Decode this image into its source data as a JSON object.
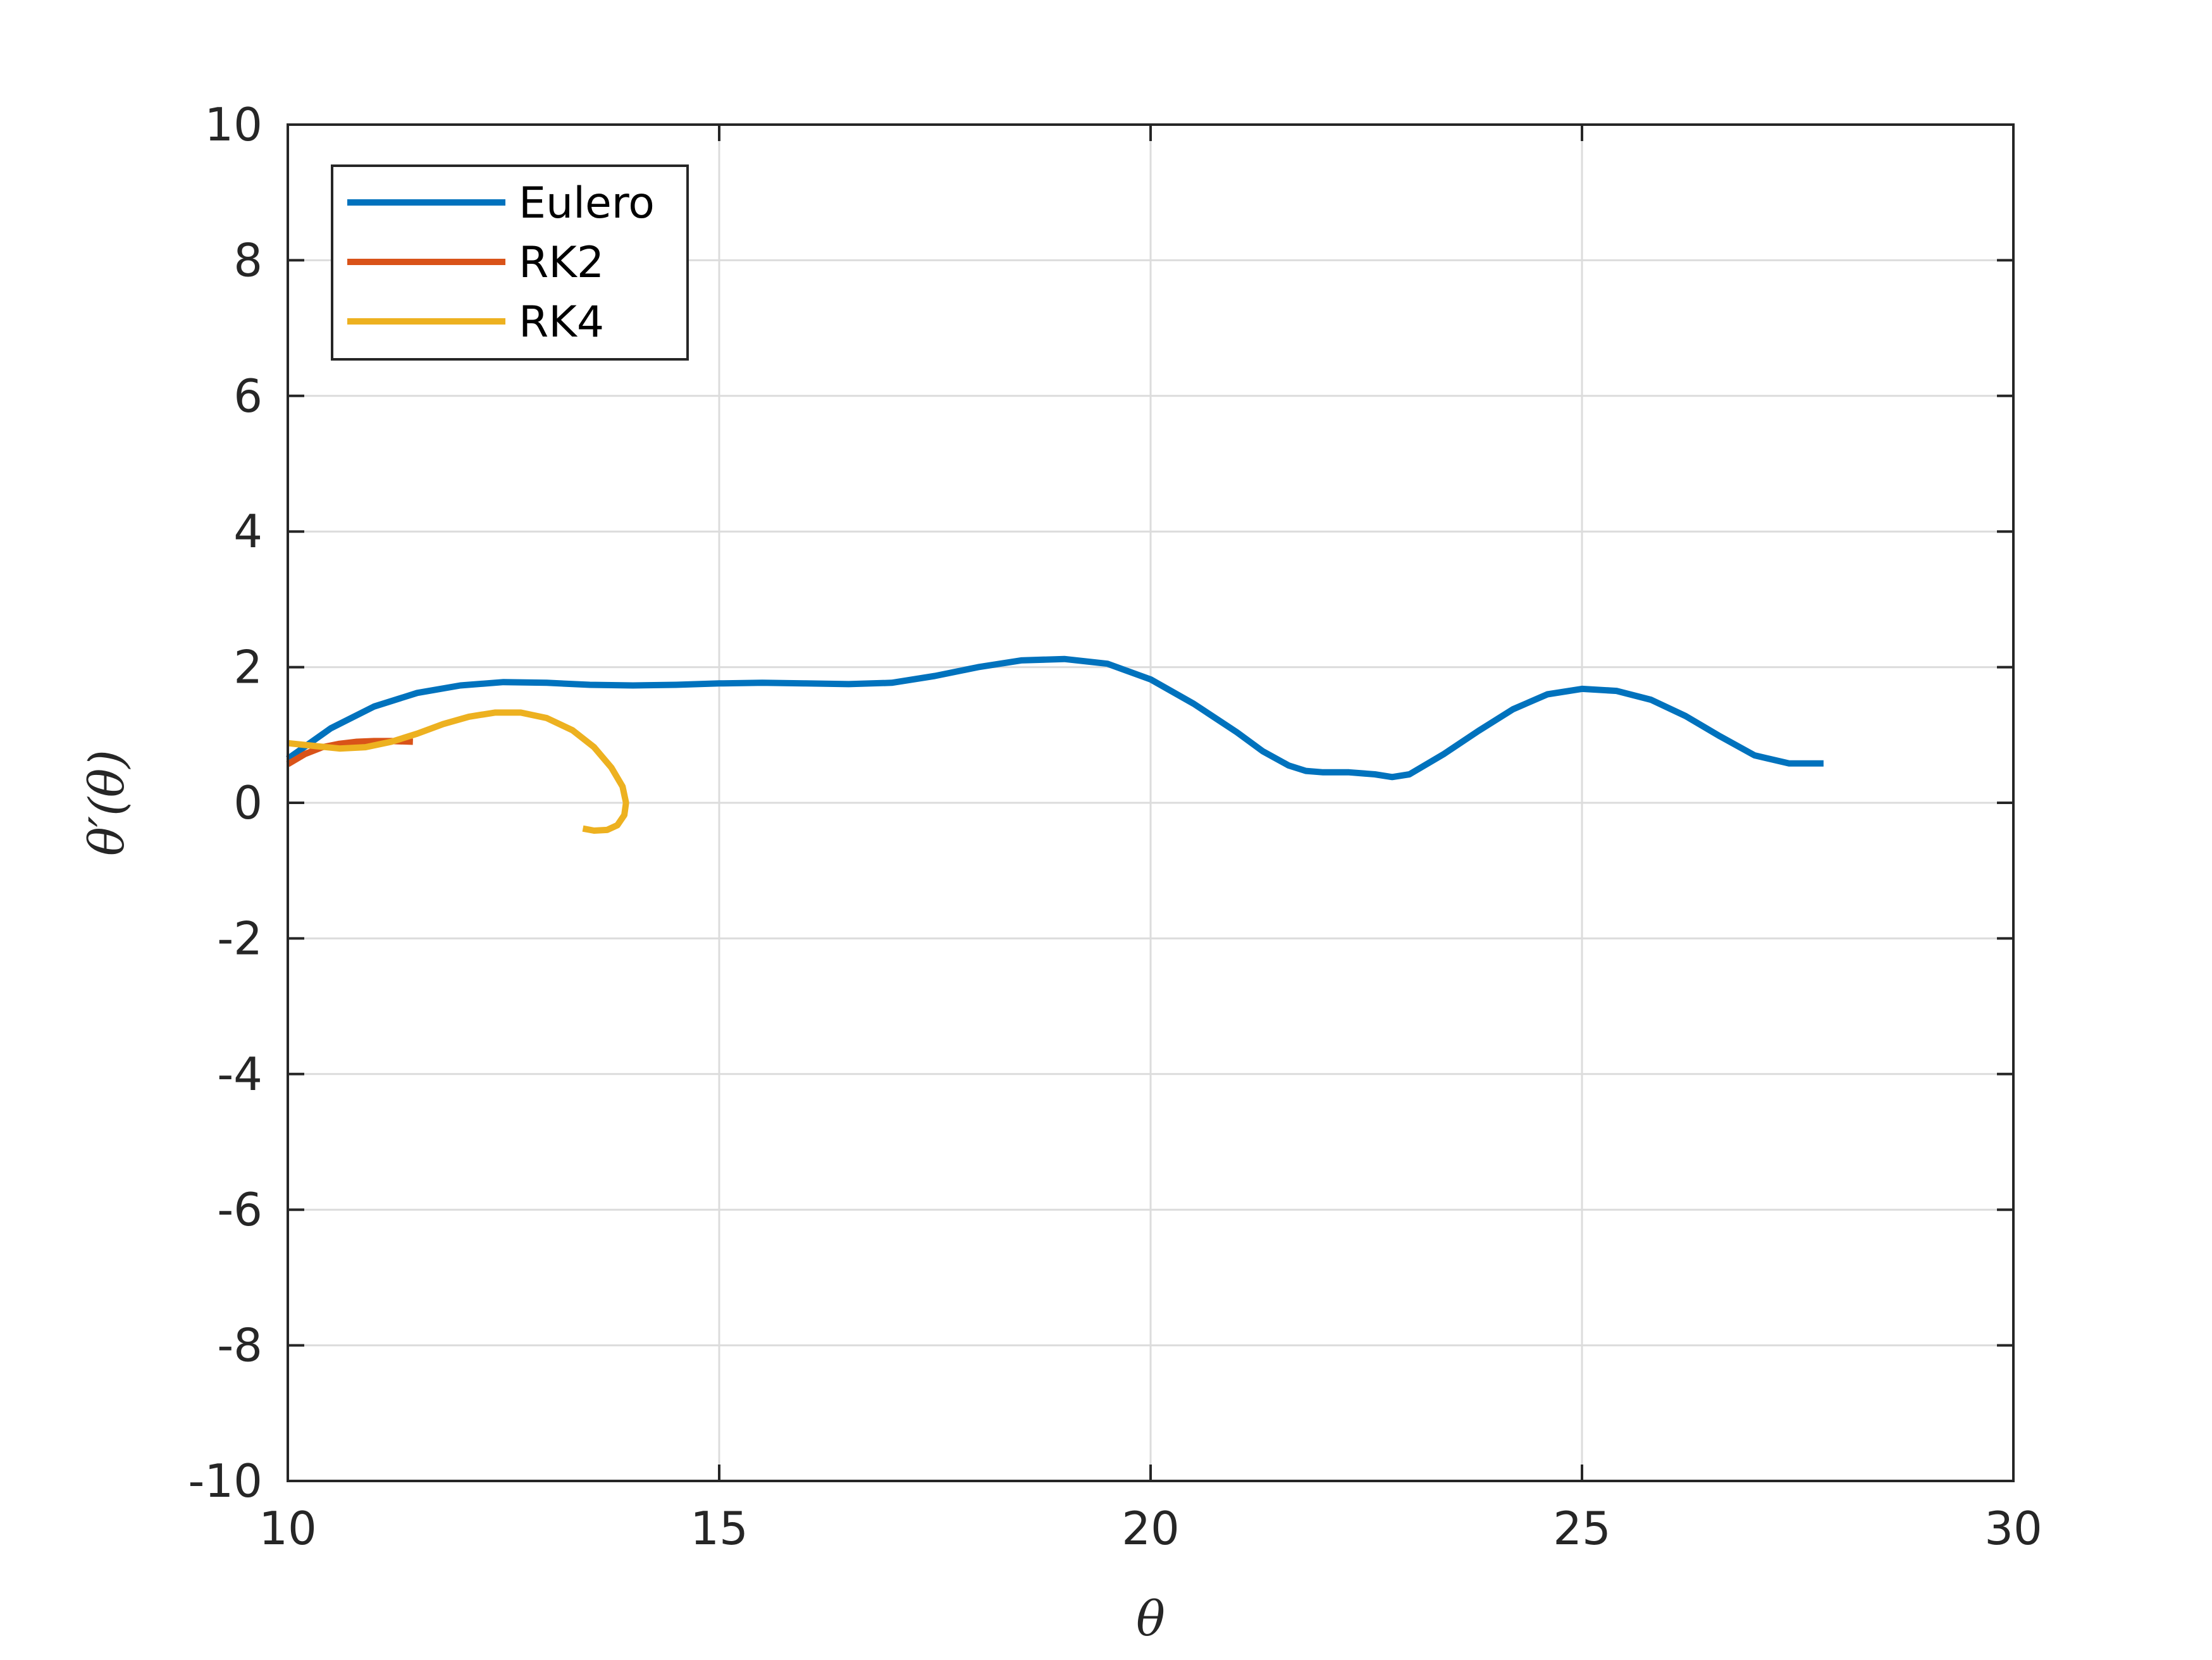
{
  "chart_data": {
    "type": "line",
    "title": "",
    "xlabel": "θ",
    "ylabel": "θ′(θ)",
    "xlim": [
      10,
      30
    ],
    "ylim": [
      -10,
      10
    ],
    "xticks": [
      10,
      15,
      20,
      25,
      30
    ],
    "yticks": [
      -10,
      -8,
      -6,
      -4,
      -2,
      0,
      2,
      4,
      6,
      8,
      10
    ],
    "grid": true,
    "legend": {
      "position": "top-left",
      "boxed": true
    },
    "series": [
      {
        "name": "Eulero",
        "color": "#0072bd",
        "x": [
          10.0,
          10.5,
          11.0,
          11.5,
          12.0,
          12.5,
          13.0,
          13.5,
          14.0,
          14.5,
          15.0,
          15.5,
          16.0,
          16.5,
          17.0,
          17.5,
          18.0,
          18.5,
          19.0,
          19.5,
          20.0,
          20.5,
          21.0,
          21.3,
          21.6,
          21.8,
          22.0,
          22.3,
          22.6,
          22.8,
          23.0,
          23.4,
          23.8,
          24.2,
          24.6,
          25.0,
          25.4,
          25.8,
          26.2,
          26.6,
          27.0,
          27.4,
          27.8
        ],
        "y": [
          0.65,
          1.1,
          1.42,
          1.62,
          1.73,
          1.78,
          1.77,
          1.74,
          1.73,
          1.74,
          1.76,
          1.77,
          1.76,
          1.75,
          1.77,
          1.87,
          2.0,
          2.1,
          2.12,
          2.05,
          1.82,
          1.46,
          1.04,
          0.76,
          0.55,
          0.47,
          0.45,
          0.45,
          0.42,
          0.38,
          0.42,
          0.72,
          1.06,
          1.38,
          1.6,
          1.68,
          1.65,
          1.52,
          1.28,
          0.98,
          0.7,
          0.58,
          0.58
        ]
      },
      {
        "name": "RK2",
        "color": "#d95319",
        "x": [
          10.0,
          10.2,
          10.4,
          10.6,
          10.8,
          11.0,
          11.2,
          11.45
        ],
        "y": [
          0.57,
          0.72,
          0.82,
          0.87,
          0.9,
          0.91,
          0.91,
          0.9
        ]
      },
      {
        "name": "RK4",
        "color": "#edb120",
        "x": [
          10.0,
          10.3,
          10.6,
          10.9,
          11.2,
          11.5,
          11.8,
          12.1,
          12.4,
          12.7,
          13.0,
          13.3,
          13.55,
          13.75,
          13.88,
          13.92,
          13.9,
          13.82,
          13.7,
          13.55,
          13.42
        ],
        "y": [
          0.88,
          0.84,
          0.8,
          0.82,
          0.9,
          1.02,
          1.16,
          1.27,
          1.33,
          1.33,
          1.25,
          1.07,
          0.82,
          0.52,
          0.24,
          0.0,
          -0.18,
          -0.33,
          -0.4,
          -0.41,
          -0.38
        ]
      }
    ]
  }
}
